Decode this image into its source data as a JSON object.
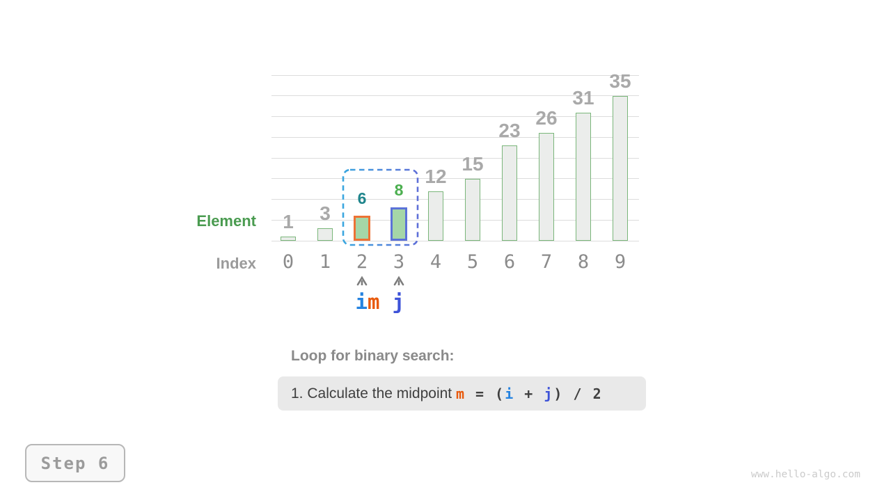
{
  "chart_data": {
    "type": "bar",
    "title": "",
    "xlabel": "Index",
    "ylabel": "Element",
    "categories": [
      "0",
      "1",
      "2",
      "3",
      "4",
      "5",
      "6",
      "7",
      "8",
      "9"
    ],
    "values": [
      1,
      3,
      6,
      8,
      12,
      15,
      23,
      26,
      31,
      35
    ],
    "ylim": [
      0,
      40
    ],
    "gridline_step": 5,
    "grid": true,
    "legend": false,
    "bar_fill": "#ebedeb",
    "bar_border": "#7ab67a",
    "highlight_fill": "#a5d6a7",
    "value_label_color": "#a9a9a9",
    "highlighted_bars": [
      {
        "index": 2,
        "value": 6,
        "border_color": "#ed7234",
        "value_color": "#1f858c"
      },
      {
        "index": 3,
        "value": 8,
        "border_color": "#5b72d8",
        "value_color": "#4caf50"
      }
    ],
    "search_range_box": {
      "from_index": 2,
      "to_index": 3,
      "color_start": "#3aa6df",
      "color_end": "#5e6fd8"
    },
    "pointers": [
      {
        "index": 2,
        "labels": [
          {
            "text": "i",
            "color": "#2583e0"
          },
          {
            "text": "m",
            "color": "#e8590c"
          }
        ]
      },
      {
        "index": 3,
        "labels": [
          {
            "text": "j",
            "color": "#3e53d8"
          }
        ]
      }
    ],
    "caret_color": "#7d7d7d"
  },
  "axis": {
    "element_label": "Element",
    "index_label": "Index"
  },
  "caption": {
    "heading": "Loop for binary search:",
    "formula_tokens": [
      {
        "text": "1. Calculate the midpoint ",
        "style": "sans",
        "color": "#3f3f3f"
      },
      {
        "text": "m",
        "style": "mono",
        "color": "#e8590c"
      },
      {
        "text": " = ",
        "style": "mono",
        "color": "#3f3f3f"
      },
      {
        "text": "(",
        "style": "mono",
        "color": "#3f3f3f"
      },
      {
        "text": "i",
        "style": "mono",
        "color": "#2583e0"
      },
      {
        "text": " + ",
        "style": "mono",
        "color": "#3f3f3f"
      },
      {
        "text": "j",
        "style": "mono",
        "color": "#3e53d8"
      },
      {
        "text": ")",
        "style": "mono",
        "color": "#3f3f3f"
      },
      {
        "text": " / ",
        "style": "mono",
        "color": "#3f3f3f"
      },
      {
        "text": "2",
        "style": "mono",
        "color": "#3f3f3f"
      }
    ]
  },
  "footer": {
    "step_label": "Step 6",
    "watermark": "www.hello-algo.com"
  }
}
